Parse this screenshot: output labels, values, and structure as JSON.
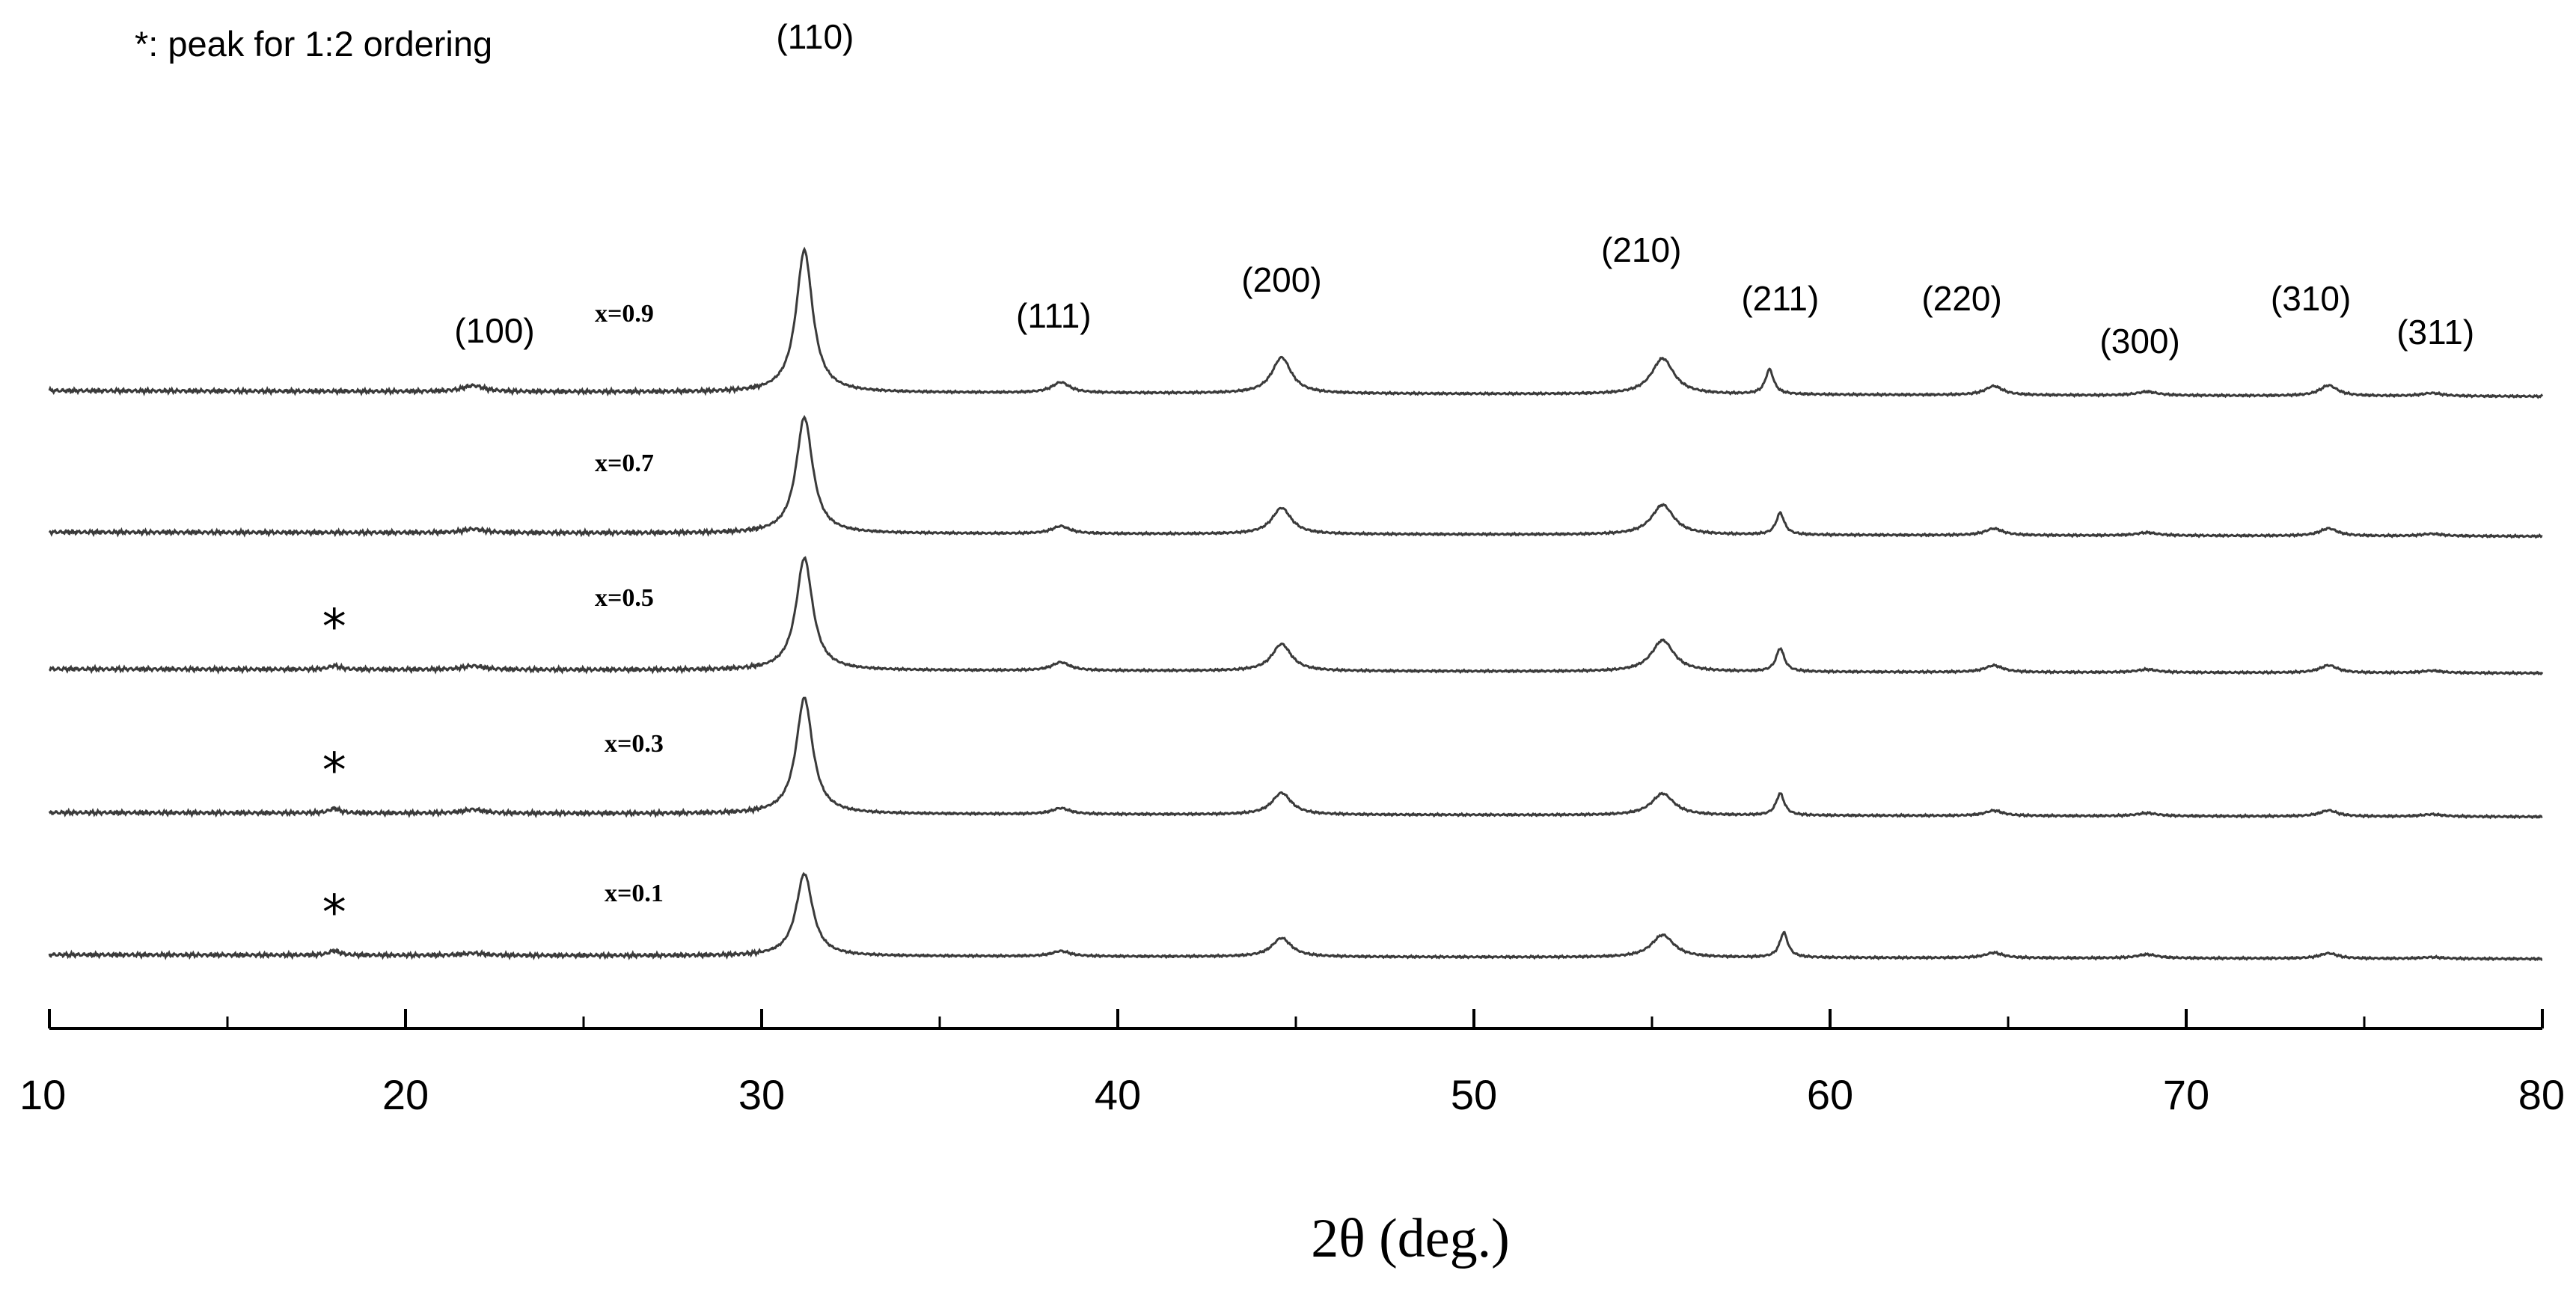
{
  "chart_data": {
    "type": "line",
    "title": "",
    "xlabel": "2θ (deg.)",
    "ylabel": "",
    "xlim": [
      10,
      80
    ],
    "x_ticks": [
      10,
      20,
      30,
      40,
      50,
      60,
      70,
      80
    ],
    "x_tick_labels": [
      "10",
      "20",
      "30",
      "40",
      "50",
      "60",
      "70",
      "80"
    ],
    "minor_tick_step": 5,
    "grid": false,
    "y_axis_visible": false,
    "stacked_offset": true,
    "legend_note": "*: peak for 1:2 ordering",
    "series": [
      {
        "name": "x=0.9",
        "star_marker": false,
        "baseline_slope": 0.11,
        "peaks": [
          [
            21.9,
            8,
            0.35
          ],
          [
            31.2,
            190,
            0.28
          ],
          [
            38.4,
            14,
            0.3
          ],
          [
            44.6,
            48,
            0.33
          ],
          [
            55.3,
            48,
            0.38
          ],
          [
            58.3,
            33,
            0.14
          ],
          [
            64.6,
            12,
            0.3
          ],
          [
            68.9,
            5,
            0.35
          ],
          [
            74.0,
            14,
            0.3
          ],
          [
            76.9,
            4,
            0.35
          ]
        ]
      },
      {
        "name": "x=0.7",
        "star_marker": false,
        "baseline_slope": 0.08,
        "peaks": [
          [
            21.9,
            5,
            0.35
          ],
          [
            31.2,
            155,
            0.28
          ],
          [
            38.4,
            10,
            0.3
          ],
          [
            44.6,
            35,
            0.33
          ],
          [
            55.3,
            40,
            0.38
          ],
          [
            58.6,
            29,
            0.14
          ],
          [
            64.6,
            9,
            0.3
          ],
          [
            68.9,
            4,
            0.35
          ],
          [
            74.0,
            10,
            0.3
          ],
          [
            76.9,
            3,
            0.35
          ]
        ]
      },
      {
        "name": "x=0.5",
        "star_marker": true,
        "baseline_slope": 0.08,
        "peaks": [
          [
            18.0,
            5,
            0.18
          ],
          [
            21.9,
            5,
            0.35
          ],
          [
            31.2,
            150,
            0.28
          ],
          [
            38.4,
            11,
            0.3
          ],
          [
            44.6,
            36,
            0.33
          ],
          [
            55.3,
            42,
            0.38
          ],
          [
            58.6,
            31,
            0.14
          ],
          [
            64.6,
            9,
            0.3
          ],
          [
            68.9,
            4,
            0.35
          ],
          [
            74.0,
            10,
            0.3
          ],
          [
            76.9,
            3,
            0.35
          ]
        ]
      },
      {
        "name": "x=0.3",
        "star_marker": true,
        "baseline_slope": 0.08,
        "peaks": [
          [
            18.0,
            6,
            0.18
          ],
          [
            21.9,
            5,
            0.35
          ],
          [
            31.2,
            155,
            0.28
          ],
          [
            38.4,
            8,
            0.3
          ],
          [
            44.6,
            29,
            0.33
          ],
          [
            55.3,
            29,
            0.38
          ],
          [
            58.6,
            29,
            0.14
          ],
          [
            64.6,
            7,
            0.3
          ],
          [
            68.9,
            4,
            0.35
          ],
          [
            74.0,
            8,
            0.3
          ],
          [
            76.9,
            3,
            0.35
          ]
        ]
      },
      {
        "name": "x=0.1",
        "star_marker": true,
        "baseline_slope": 0.08,
        "peaks": [
          [
            18.0,
            6,
            0.18
          ],
          [
            21.9,
            3,
            0.35
          ],
          [
            31.2,
            110,
            0.28
          ],
          [
            38.4,
            7,
            0.3
          ],
          [
            44.6,
            25,
            0.33
          ],
          [
            55.3,
            30,
            0.38
          ],
          [
            58.7,
            33,
            0.14
          ],
          [
            64.6,
            7,
            0.3
          ],
          [
            68.9,
            5,
            0.35
          ],
          [
            74.0,
            7,
            0.3
          ],
          [
            76.9,
            2,
            0.35
          ]
        ]
      }
    ],
    "peak_labels": [
      {
        "text": "(100)",
        "x": 22.5
      },
      {
        "text": "(110)",
        "x": 31.5
      },
      {
        "text": "(111)",
        "x": 38.2
      },
      {
        "text": "(200)",
        "x": 44.6
      },
      {
        "text": "(210)",
        "x": 54.7
      },
      {
        "text": "(211)",
        "x": 58.6
      },
      {
        "text": "(220)",
        "x": 63.7
      },
      {
        "text": "(300)",
        "x": 68.7
      },
      {
        "text": "(310)",
        "x": 73.5
      },
      {
        "text": "(311)",
        "x": 77.0
      }
    ],
    "colors": {
      "trace": "#3a3a3a",
      "axis": "#000000",
      "text": "#000000"
    }
  }
}
